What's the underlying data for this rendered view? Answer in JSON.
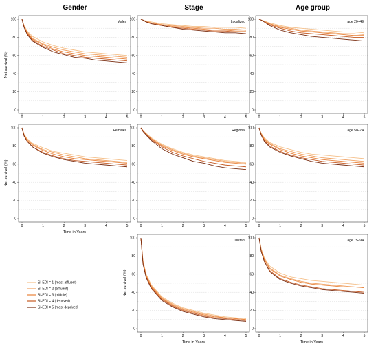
{
  "column_titles": [
    "Gender",
    "Stage",
    "Age group"
  ],
  "legend": {
    "entries": [
      {
        "label": "SI-EDI = 1 (most affluent)",
        "color": "#f5c08a"
      },
      {
        "label": "SI-EDI = 2 (affluent)",
        "color": "#f0a060"
      },
      {
        "label": "SI-EDI = 3 (middle)",
        "color": "#e8823a"
      },
      {
        "label": "SI-EDI = 4 (deprived)",
        "color": "#c65a22"
      },
      {
        "label": "SI-EDI = 5 (most deprived)",
        "color": "#7a2e12"
      }
    ]
  },
  "chart_data": [
    {
      "type": "line",
      "label": "Males",
      "column": "Gender",
      "x": [
        0,
        0.1,
        0.25,
        0.5,
        1,
        1.5,
        2,
        2.5,
        3,
        3.5,
        4,
        4.5,
        5
      ],
      "series": [
        {
          "name": "SI-EDI = 1 (most affluent)",
          "values": [
            100,
            93,
            87,
            81,
            75,
            71,
            68,
            66,
            64,
            63,
            62,
            61,
            60
          ]
        },
        {
          "name": "SI-EDI = 2 (affluent)",
          "values": [
            100,
            92,
            86,
            79,
            73,
            69,
            66,
            64,
            62,
            61,
            60,
            59,
            58
          ]
        },
        {
          "name": "SI-EDI = 3 (middle)",
          "values": [
            100,
            92,
            85,
            78,
            72,
            67,
            64,
            62,
            60,
            59,
            58,
            57,
            56
          ]
        },
        {
          "name": "SI-EDI = 4 (deprived)",
          "values": [
            100,
            91,
            84,
            77,
            70,
            66,
            62,
            60,
            58,
            57,
            56,
            55,
            54
          ]
        },
        {
          "name": "SI-EDI = 5 (most deprived)",
          "values": [
            100,
            91,
            83,
            76,
            69,
            64,
            61,
            58,
            57,
            55,
            54,
            53,
            52
          ]
        }
      ],
      "xlabel": "",
      "ylabel": "Net survival (%)",
      "xlim": [
        0,
        5
      ],
      "ylim": [
        0,
        100
      ]
    },
    {
      "type": "line",
      "label": "Localized",
      "column": "Stage",
      "x": [
        0,
        0.1,
        0.25,
        0.5,
        1,
        1.5,
        2,
        2.5,
        3,
        3.5,
        4,
        4.5,
        5
      ],
      "series": [
        {
          "name": "SI-EDI = 1 (most affluent)",
          "values": [
            100,
            99,
            98,
            97,
            95,
            94,
            93,
            92,
            92,
            91,
            91,
            91,
            90
          ]
        },
        {
          "name": "SI-EDI = 2 (affluent)",
          "values": [
            100,
            99,
            98,
            96,
            94,
            93,
            92,
            91,
            90,
            90,
            89,
            89,
            88
          ]
        },
        {
          "name": "SI-EDI = 3 (middle)",
          "values": [
            100,
            99,
            97,
            96,
            94,
            92,
            91,
            90,
            89,
            88,
            88,
            87,
            87
          ]
        },
        {
          "name": "SI-EDI = 4 (deprived)",
          "values": [
            100,
            99,
            97,
            95,
            93,
            91,
            90,
            89,
            88,
            87,
            87,
            86,
            86
          ]
        },
        {
          "name": "SI-EDI = 5 (most deprived)",
          "values": [
            100,
            99,
            97,
            95,
            93,
            91,
            89,
            88,
            87,
            86,
            85,
            85,
            84
          ]
        }
      ],
      "xlabel": "",
      "ylabel": "",
      "xlim": [
        0,
        5
      ],
      "ylim": [
        0,
        100
      ]
    },
    {
      "type": "line",
      "label": "age 20–49",
      "column": "Age group",
      "x": [
        0,
        0.1,
        0.25,
        0.5,
        1,
        1.5,
        2,
        2.5,
        3,
        3.5,
        4,
        4.5,
        5
      ],
      "series": [
        {
          "name": "SI-EDI = 1 (most affluent)",
          "values": [
            100,
            99,
            98,
            96,
            93,
            91,
            90,
            89,
            88,
            87,
            86,
            86,
            85
          ]
        },
        {
          "name": "SI-EDI = 2 (affluent)",
          "values": [
            100,
            99,
            98,
            95,
            92,
            90,
            88,
            87,
            86,
            85,
            84,
            84,
            83
          ]
        },
        {
          "name": "SI-EDI = 3 (middle)",
          "values": [
            100,
            99,
            97,
            95,
            91,
            89,
            87,
            86,
            85,
            84,
            83,
            82,
            82
          ]
        },
        {
          "name": "SI-EDI = 4 (deprived)",
          "values": [
            100,
            99,
            97,
            94,
            90,
            87,
            85,
            84,
            83,
            82,
            81,
            80,
            80
          ]
        },
        {
          "name": "SI-EDI = 5 (most deprived)",
          "values": [
            100,
            99,
            97,
            93,
            88,
            85,
            83,
            81,
            80,
            79,
            78,
            77,
            76
          ]
        }
      ],
      "xlabel": "",
      "ylabel": "",
      "xlim": [
        0,
        5
      ],
      "ylim": [
        0,
        100
      ]
    },
    {
      "type": "line",
      "label": "Females",
      "column": "Gender",
      "x": [
        0,
        0.1,
        0.25,
        0.5,
        1,
        1.5,
        2,
        2.5,
        3,
        3.5,
        4,
        4.5,
        5
      ],
      "series": [
        {
          "name": "SI-EDI = 1 (most affluent)",
          "values": [
            100,
            93,
            88,
            83,
            78,
            74,
            72,
            70,
            68,
            67,
            66,
            65,
            64
          ]
        },
        {
          "name": "SI-EDI = 2 (affluent)",
          "values": [
            100,
            92,
            87,
            82,
            76,
            73,
            70,
            68,
            66,
            65,
            64,
            63,
            62
          ]
        },
        {
          "name": "SI-EDI = 3 (middle)",
          "values": [
            100,
            92,
            86,
            81,
            75,
            71,
            68,
            66,
            65,
            64,
            63,
            62,
            61
          ]
        },
        {
          "name": "SI-EDI = 4 (deprived)",
          "values": [
            100,
            91,
            85,
            79,
            73,
            69,
            66,
            64,
            63,
            62,
            61,
            60,
            59
          ]
        },
        {
          "name": "SI-EDI = 5 (most deprived)",
          "values": [
            100,
            91,
            85,
            79,
            72,
            68,
            65,
            63,
            61,
            60,
            59,
            58,
            57
          ]
        }
      ],
      "xlabel": "Time in Years",
      "ylabel": "Net survival (%)",
      "xlim": [
        0,
        5
      ],
      "ylim": [
        0,
        100
      ]
    },
    {
      "type": "line",
      "label": "Regional",
      "column": "Stage",
      "x": [
        0,
        0.1,
        0.25,
        0.5,
        1,
        1.5,
        2,
        2.5,
        3,
        3.5,
        4,
        4.5,
        5
      ],
      "series": [
        {
          "name": "SI-EDI = 1 (most affluent)",
          "values": [
            100,
            97,
            94,
            89,
            82,
            77,
            73,
            70,
            68,
            66,
            64,
            63,
            62
          ]
        },
        {
          "name": "SI-EDI = 2 (affluent)",
          "values": [
            100,
            97,
            93,
            88,
            81,
            76,
            72,
            69,
            67,
            65,
            63,
            62,
            61
          ]
        },
        {
          "name": "SI-EDI = 3 (middle)",
          "values": [
            100,
            97,
            93,
            88,
            80,
            75,
            71,
            68,
            66,
            64,
            62,
            61,
            60
          ]
        },
        {
          "name": "SI-EDI = 4 (deprived)",
          "values": [
            100,
            97,
            93,
            87,
            79,
            73,
            69,
            66,
            63,
            61,
            59,
            58,
            57
          ]
        },
        {
          "name": "SI-EDI = 5 (most deprived)",
          "values": [
            100,
            96,
            92,
            86,
            77,
            71,
            67,
            63,
            61,
            58,
            56,
            55,
            54
          ]
        }
      ],
      "xlabel": "",
      "ylabel": "",
      "xlim": [
        0,
        5
      ],
      "ylim": [
        0,
        100
      ]
    },
    {
      "type": "line",
      "label": "age 50–74",
      "column": "Age group",
      "x": [
        0,
        0.1,
        0.25,
        0.5,
        1,
        1.5,
        2,
        2.5,
        3,
        3.5,
        4,
        4.5,
        5
      ],
      "series": [
        {
          "name": "SI-EDI = 1 (most affluent)",
          "values": [
            100,
            94,
            89,
            84,
            79,
            76,
            73,
            71,
            70,
            69,
            68,
            67,
            66
          ]
        },
        {
          "name": "SI-EDI = 2 (affluent)",
          "values": [
            100,
            93,
            88,
            83,
            77,
            74,
            71,
            69,
            67,
            66,
            65,
            64,
            63
          ]
        },
        {
          "name": "SI-EDI = 3 (middle)",
          "values": [
            100,
            93,
            87,
            82,
            76,
            72,
            69,
            67,
            65,
            64,
            63,
            62,
            61
          ]
        },
        {
          "name": "SI-EDI = 4 (deprived)",
          "values": [
            100,
            92,
            86,
            80,
            74,
            70,
            67,
            65,
            63,
            62,
            61,
            60,
            59
          ]
        },
        {
          "name": "SI-EDI = 5 (most deprived)",
          "values": [
            100,
            92,
            85,
            79,
            73,
            69,
            66,
            63,
            61,
            60,
            59,
            58,
            57
          ]
        }
      ],
      "xlabel": "",
      "ylabel": "",
      "xlim": [
        0,
        5
      ],
      "ylim": [
        0,
        100
      ]
    },
    {
      "type": "line",
      "label": "Distant",
      "column": "Stage",
      "x": [
        0,
        0.1,
        0.25,
        0.5,
        1,
        1.5,
        2,
        2.5,
        3,
        3.5,
        4,
        4.5,
        5
      ],
      "series": [
        {
          "name": "SI-EDI = 1 (most affluent)",
          "values": [
            100,
            75,
            60,
            48,
            35,
            28,
            23,
            20,
            17,
            15,
            13,
            12,
            11
          ]
        },
        {
          "name": "SI-EDI = 2 (affluent)",
          "values": [
            100,
            74,
            59,
            47,
            34,
            27,
            22,
            19,
            16,
            14,
            12,
            11,
            10
          ]
        },
        {
          "name": "SI-EDI = 3 (middle)",
          "values": [
            100,
            73,
            58,
            46,
            33,
            26,
            21,
            18,
            15,
            13,
            12,
            11,
            10
          ]
        },
        {
          "name": "SI-EDI = 4 (deprived)",
          "values": [
            100,
            72,
            57,
            45,
            32,
            25,
            20,
            17,
            14,
            12,
            11,
            10,
            9
          ]
        },
        {
          "name": "SI-EDI = 5 (most deprived)",
          "values": [
            100,
            71,
            56,
            44,
            31,
            24,
            19,
            16,
            13,
            11,
            10,
            9,
            8
          ]
        }
      ],
      "xlabel": "Time in Years",
      "ylabel": "Net survival (%)",
      "xlim": [
        0,
        5
      ],
      "ylim": [
        0,
        100
      ]
    },
    {
      "type": "line",
      "label": "age 75–94",
      "column": "Age group",
      "x": [
        0,
        0.1,
        0.25,
        0.5,
        1,
        1.5,
        2,
        2.5,
        3,
        3.5,
        4,
        4.5,
        5
      ],
      "series": [
        {
          "name": "SI-EDI = 1 (most affluent)",
          "values": [
            100,
            88,
            78,
            69,
            61,
            57,
            55,
            53,
            52,
            51,
            50,
            49,
            48
          ]
        },
        {
          "name": "SI-EDI = 2 (affluent)",
          "values": [
            100,
            87,
            77,
            67,
            59,
            55,
            52,
            50,
            49,
            48,
            47,
            46,
            45
          ]
        },
        {
          "name": "SI-EDI = 3 (middle)",
          "values": [
            100,
            86,
            76,
            66,
            58,
            54,
            51,
            49,
            48,
            47,
            46,
            46,
            45
          ]
        },
        {
          "name": "SI-EDI = 4 (deprived)",
          "values": [
            100,
            85,
            74,
            64,
            55,
            51,
            48,
            46,
            44,
            43,
            42,
            41,
            40
          ]
        },
        {
          "name": "SI-EDI = 5 (most deprived)",
          "values": [
            100,
            85,
            74,
            63,
            54,
            50,
            47,
            45,
            43,
            42,
            41,
            40,
            39
          ]
        }
      ],
      "xlabel": "Time in Years",
      "ylabel": "",
      "xlim": [
        0,
        5
      ],
      "ylim": [
        0,
        100
      ]
    }
  ]
}
